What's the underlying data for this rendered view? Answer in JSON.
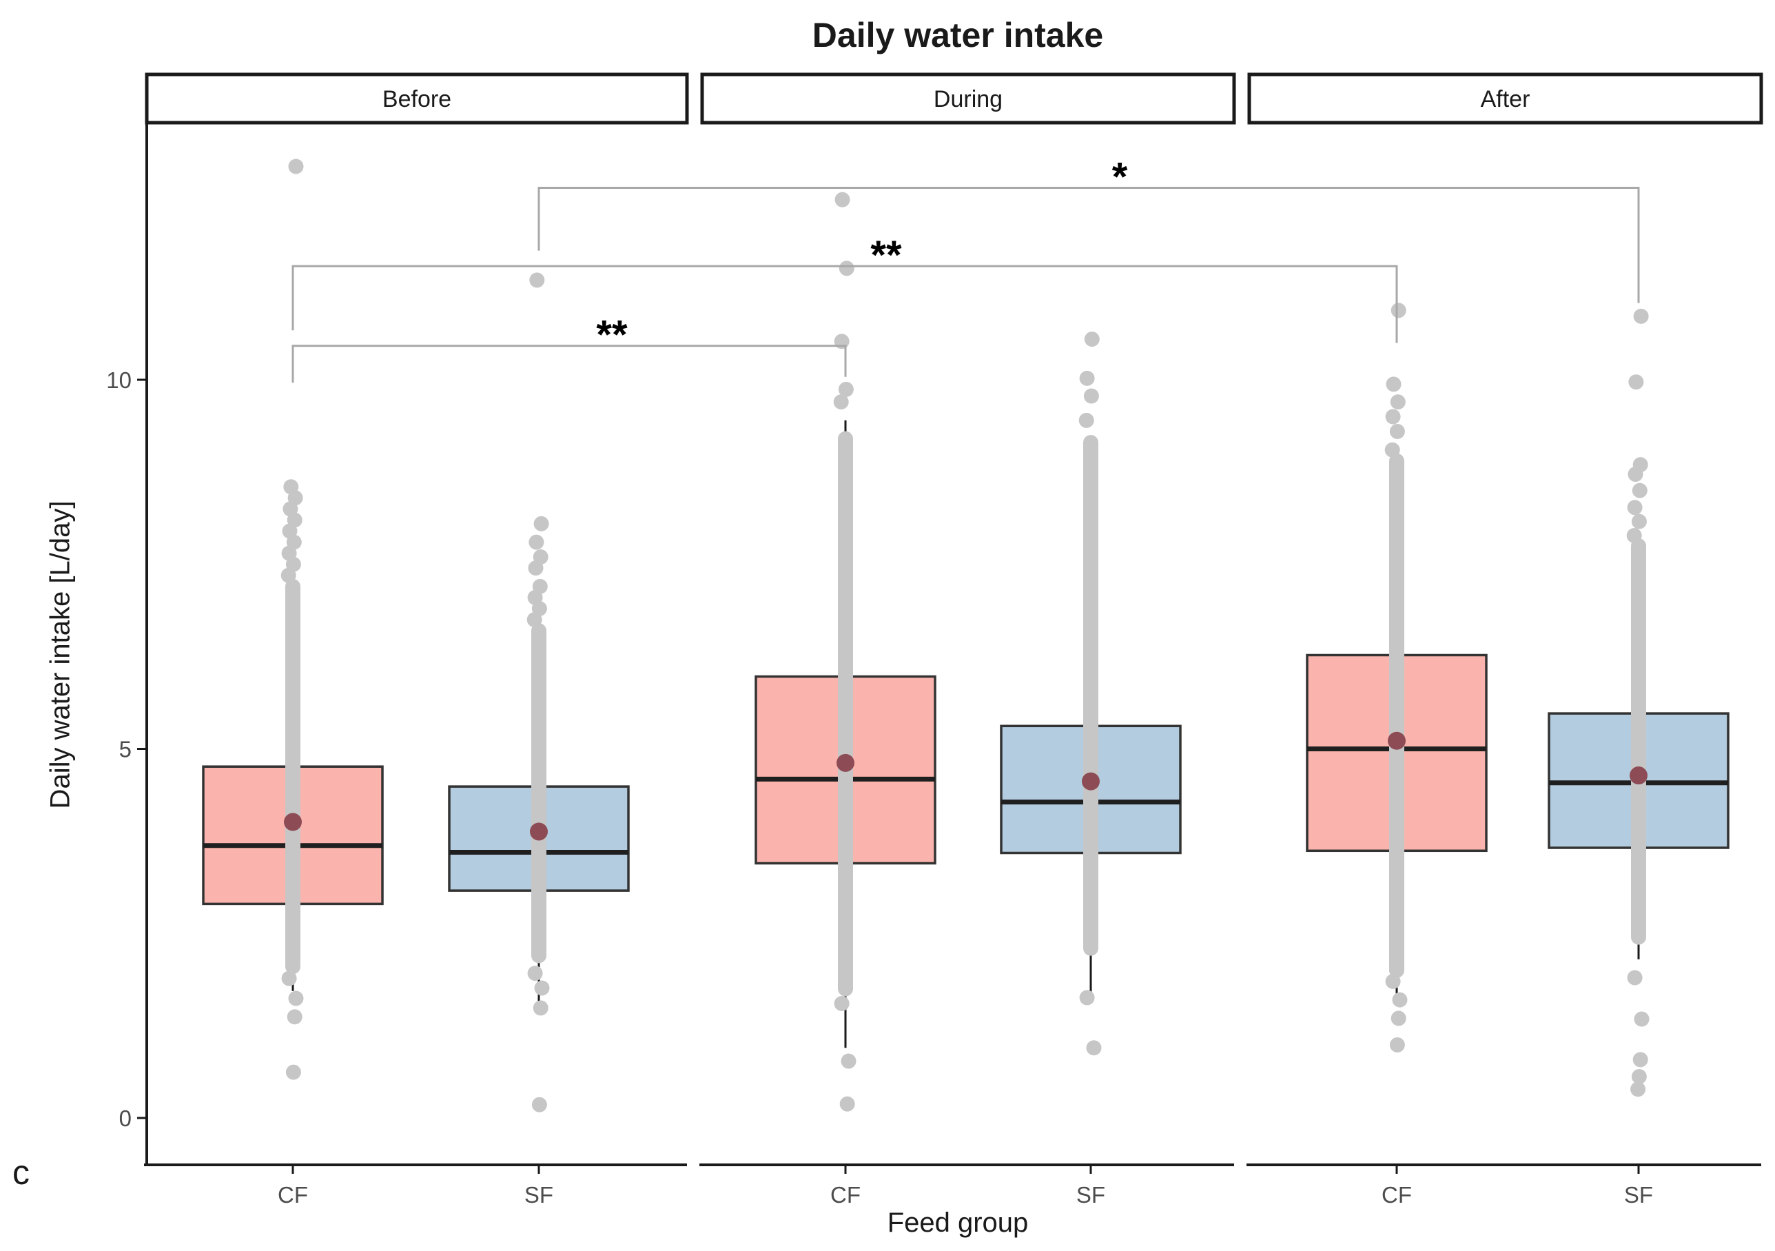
{
  "title": "Daily water intake",
  "panel_letter": "c",
  "axes": {
    "y_label": "Daily water intake [L/day]",
    "x_label": "Feed group"
  },
  "colors": {
    "cf_fill": "#FBB4AD",
    "sf_fill": "#B3CCDF",
    "jitter": "#C6C6C6",
    "mean_dot": "#8C4B55",
    "bracket": "#A8A8A8",
    "median": "#1F1F1F",
    "box_border": "#333333",
    "axis": "#1A1A1A",
    "tick_text": "#4D4D4D",
    "strip_fill": "#FFFFFF",
    "strip_border": "#1A1A1A"
  },
  "chart_data": {
    "type": "boxplot",
    "title": "Daily water intake",
    "xlabel": "Feed group",
    "ylabel": "Daily water intake [L/day]",
    "ylim": [
      -0.7,
      13.5
    ],
    "yticks": [
      0,
      5,
      10
    ],
    "grid": false,
    "legend": "none",
    "groups": [
      "CF",
      "SF"
    ],
    "facets": [
      {
        "label": "Before",
        "boxes": [
          {
            "group": "CF",
            "q1": 2.9,
            "median": 3.69,
            "q3": 4.76,
            "mean": 4.01,
            "whisker_low": 1.72,
            "whisker_high": 7.5,
            "strip": [
              2.05,
              7.2
            ],
            "points_above": [
              7.35,
              7.5,
              7.65,
              7.8,
              7.95,
              8.1,
              8.25,
              8.4,
              8.55,
              12.89
            ],
            "points_below": [
              1.89,
              1.62,
              1.37,
              0.62
            ]
          },
          {
            "group": "SF",
            "q1": 3.08,
            "median": 3.6,
            "q3": 4.49,
            "mean": 3.88,
            "whisker_low": 1.49,
            "whisker_high": 6.55,
            "strip": [
              2.2,
              6.6
            ],
            "points_above": [
              6.75,
              6.9,
              7.05,
              7.2,
              7.45,
              7.6,
              7.8,
              8.05,
              11.35
            ],
            "points_below": [
              1.96,
              1.76,
              1.49,
              0.18
            ]
          }
        ]
      },
      {
        "label": "During",
        "boxes": [
          {
            "group": "CF",
            "q1": 3.45,
            "median": 4.59,
            "q3": 5.98,
            "mean": 4.81,
            "whisker_low": 0.95,
            "whisker_high": 9.45,
            "strip": [
              1.75,
              9.2
            ],
            "points_above": [
              9.7,
              9.87,
              10.52,
              11.51,
              12.44
            ],
            "points_below": [
              1.55,
              0.77,
              0.19
            ]
          },
          {
            "group": "SF",
            "q1": 3.59,
            "median": 4.28,
            "q3": 5.31,
            "mean": 4.56,
            "whisker_low": 1.63,
            "whisker_high": 7.9,
            "strip": [
              2.3,
              9.15
            ],
            "points_above": [
              9.45,
              9.78,
              10.02,
              10.55
            ],
            "points_below": [
              1.63,
              0.95
            ]
          }
        ]
      },
      {
        "label": "After",
        "boxes": [
          {
            "group": "CF",
            "q1": 3.62,
            "median": 5.0,
            "q3": 6.27,
            "mean": 5.11,
            "whisker_low": 1.62,
            "whisker_high": 8.85,
            "strip": [
              2.0,
              8.9
            ],
            "points_above": [
              9.05,
              9.3,
              9.5,
              9.7,
              9.94,
              10.94
            ],
            "points_below": [
              1.85,
              1.6,
              1.35,
              0.99
            ]
          },
          {
            "group": "SF",
            "q1": 3.66,
            "median": 4.54,
            "q3": 5.48,
            "mean": 4.64,
            "whisker_low": 2.15,
            "whisker_high": 7.7,
            "strip": [
              2.45,
              7.75
            ],
            "points_above": [
              7.89,
              8.08,
              8.27,
              8.5,
              8.72,
              8.85,
              9.97,
              10.86
            ],
            "points_below": [
              1.9,
              1.34,
              0.79,
              0.56,
              0.39
            ]
          }
        ]
      }
    ],
    "significance": [
      {
        "label": "**",
        "from": {
          "facet": "Before",
          "group": "CF"
        },
        "to": {
          "facet": "During",
          "group": "CF"
        },
        "y": 10.46,
        "drop_left": 0.5,
        "drop_right": 0.42
      },
      {
        "label": "**",
        "from": {
          "facet": "Before",
          "group": "CF"
        },
        "to": {
          "facet": "After",
          "group": "CF"
        },
        "y": 11.54,
        "drop_left": 0.87,
        "drop_right": 1.04
      },
      {
        "label": "*",
        "from": {
          "facet": "Before",
          "group": "SF"
        },
        "to": {
          "facet": "After",
          "group": "SF"
        },
        "y": 12.6,
        "drop_left": 0.85,
        "drop_right": 1.56
      }
    ]
  }
}
